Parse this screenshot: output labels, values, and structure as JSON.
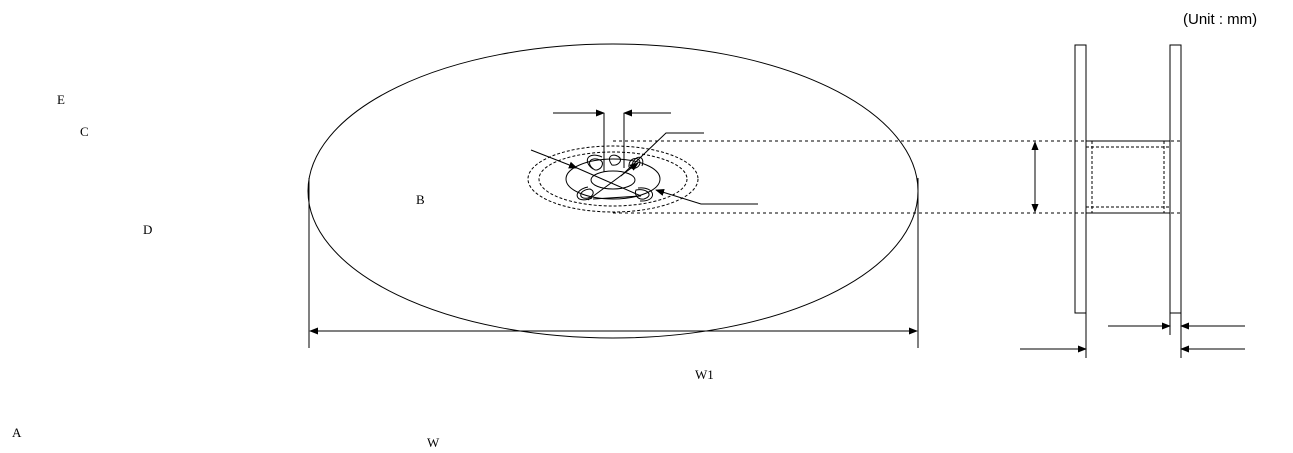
{
  "unit_note": "(Unit : mm)",
  "labels": {
    "a": "A",
    "b": "B",
    "c": "C",
    "d": "D",
    "e": "E",
    "w": "W",
    "w1": "W1"
  },
  "colors": {
    "line": "#000000",
    "background": "#ffffff"
  }
}
